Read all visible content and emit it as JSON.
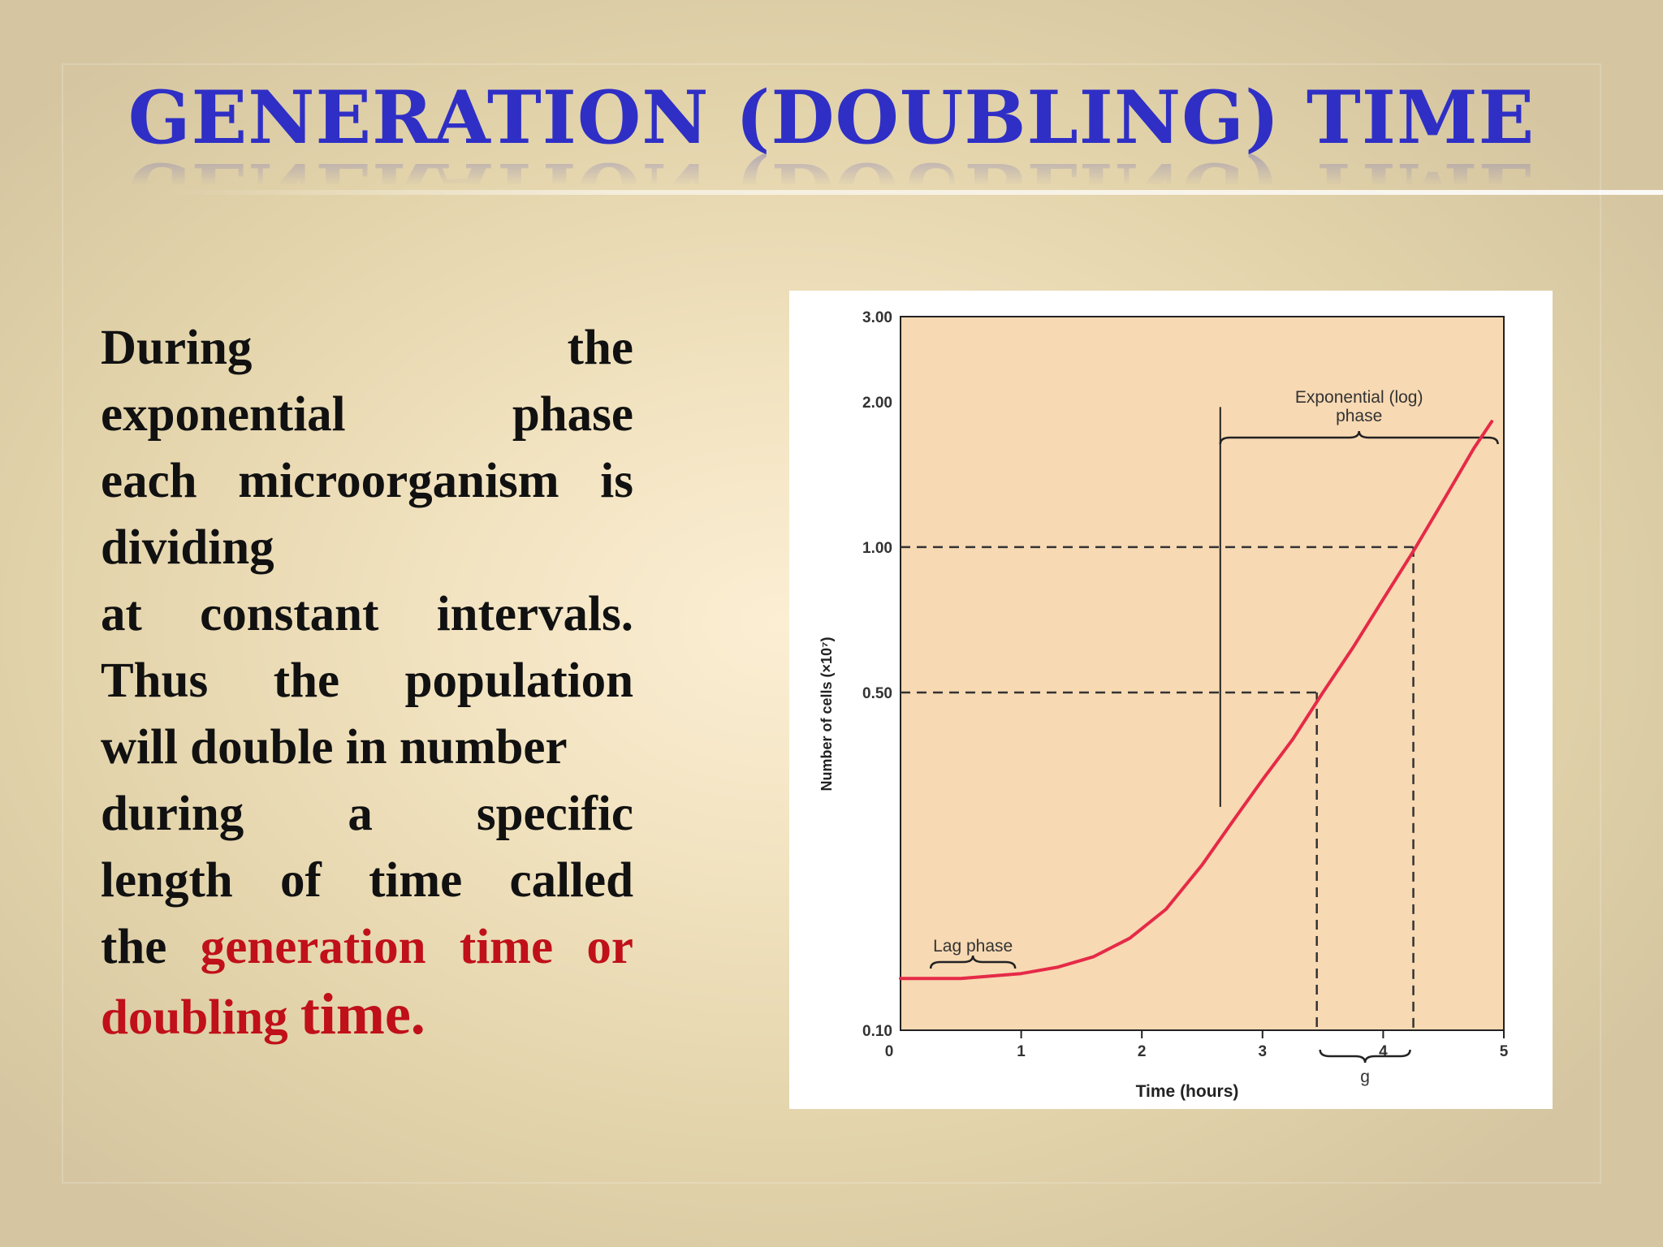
{
  "slide": {
    "title": "GENERATION (DOUBLING) TIME",
    "body_lines": [
      {
        "text": "During the",
        "align": "j"
      },
      {
        "text": "exponential phase",
        "align": "j"
      },
      {
        "text": "each microorganism is",
        "align": "j"
      },
      {
        "text": "dividing",
        "align": "l"
      },
      {
        "text": "at constant intervals.",
        "align": "j"
      },
      {
        "text": "Thus the population",
        "align": "j"
      },
      {
        "text": "will double in number",
        "align": "l"
      },
      {
        "text": "during a specific",
        "align": "j"
      },
      {
        "text": "length of time called",
        "align": "j"
      }
    ],
    "body_prefix": "the ",
    "body_highlight_1": "generation time or",
    "body_highlight_2": "doubling ",
    "body_highlight_3": "time."
  },
  "colors": {
    "title": "#2f2fc6",
    "highlight": "#c0101a",
    "plot_bg": "#f7d9b3",
    "curve": "#e52a47"
  },
  "chart_data": {
    "type": "line",
    "xlabel": "Time (hours)",
    "ylabel": "Number of cells (×10⁷)",
    "y_scale": "log",
    "xlim": [
      0,
      5
    ],
    "ylim": [
      0.1,
      3.0
    ],
    "x_ticks": [
      0,
      1,
      2,
      3,
      4,
      5
    ],
    "x_tick_labels": [
      "0",
      "1",
      "2",
      "3",
      "4",
      "5"
    ],
    "y_ticks": [
      0.1,
      0.5,
      1.0,
      2.0,
      3.0
    ],
    "y_tick_labels": [
      "0.10",
      "0.50",
      "1.00",
      "2.00",
      "3.00"
    ],
    "series": [
      {
        "x": [
          0,
          0.5,
          1.0,
          1.3,
          1.6,
          1.9,
          2.2,
          2.5,
          2.75,
          3.0,
          3.25,
          3.5,
          3.75,
          4.0,
          4.25,
          4.5,
          4.75,
          4.9
        ],
        "y": [
          0.128,
          0.128,
          0.131,
          0.135,
          0.142,
          0.155,
          0.178,
          0.22,
          0.27,
          0.33,
          0.4,
          0.5,
          0.62,
          0.78,
          0.98,
          1.25,
          1.6,
          1.82
        ]
      }
    ],
    "annotations": {
      "lag_phase": "Lag phase",
      "lag_range": [
        0.25,
        0.95
      ],
      "exp_phase_line1": "Exponential (log)",
      "exp_phase_line2": "phase",
      "exp_range": [
        2.65,
        4.95
      ],
      "exp_marker_x": 2.65,
      "exp_marker_y_top": 1.95,
      "exp_marker_y_bottom": 0.29,
      "g_label": "g",
      "g_range": [
        3.45,
        4.25
      ],
      "guides": [
        {
          "x": 3.45,
          "y": 0.5
        },
        {
          "x": 4.25,
          "y": 1.0
        }
      ]
    },
    "grid": false,
    "legend": "none"
  }
}
